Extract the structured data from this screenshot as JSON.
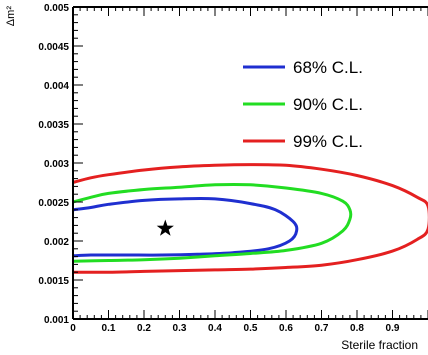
{
  "chart_data": {
    "type": "line",
    "xlabel": "Sterile fraction",
    "ylabel": "Δm²",
    "xlim": [
      0,
      1
    ],
    "ylim": [
      0.001,
      0.005
    ],
    "x_tick_labels": [
      "0",
      "0.1",
      "0.2",
      "0.3",
      "0.4",
      "0.5",
      "0.6",
      "0.7",
      "0.8",
      "0.9"
    ],
    "y_tick_labels": [
      "0.001",
      "0.0015",
      "0.002",
      "0.0025",
      "0.003",
      "0.0035",
      "0.004",
      "0.0045",
      "0.005"
    ],
    "grid": false,
    "legend_position": "top-right",
    "best_fit": {
      "x": 0.26,
      "y": 0.00216,
      "marker": "star",
      "color": "#000000"
    },
    "series": [
      {
        "name": "68% C.L.",
        "color": "#1f2fd0",
        "points": [
          [
            0.0,
            0.0024
          ],
          [
            0.05,
            0.00243
          ],
          [
            0.1,
            0.00247
          ],
          [
            0.2,
            0.00252
          ],
          [
            0.3,
            0.00254
          ],
          [
            0.4,
            0.00254
          ],
          [
            0.5,
            0.00248
          ],
          [
            0.57,
            0.0024
          ],
          [
            0.62,
            0.00225
          ],
          [
            0.63,
            0.00213
          ],
          [
            0.61,
            0.002
          ],
          [
            0.55,
            0.0019
          ],
          [
            0.45,
            0.00185
          ],
          [
            0.35,
            0.00183
          ],
          [
            0.25,
            0.00182
          ],
          [
            0.15,
            0.00182
          ],
          [
            0.05,
            0.00182
          ],
          [
            0.0,
            0.00181
          ]
        ]
      },
      {
        "name": "90% C.L.",
        "color": "#22dd22",
        "points": [
          [
            0.0,
            0.0025
          ],
          [
            0.05,
            0.00256
          ],
          [
            0.1,
            0.00261
          ],
          [
            0.2,
            0.00266
          ],
          [
            0.3,
            0.00269
          ],
          [
            0.4,
            0.00272
          ],
          [
            0.5,
            0.00272
          ],
          [
            0.6,
            0.00268
          ],
          [
            0.7,
            0.00261
          ],
          [
            0.76,
            0.00251
          ],
          [
            0.78,
            0.0024
          ],
          [
            0.78,
            0.00228
          ],
          [
            0.76,
            0.00213
          ],
          [
            0.7,
            0.00197
          ],
          [
            0.6,
            0.00188
          ],
          [
            0.5,
            0.00184
          ],
          [
            0.4,
            0.00181
          ],
          [
            0.3,
            0.00178
          ],
          [
            0.2,
            0.00176
          ],
          [
            0.1,
            0.00175
          ],
          [
            0.0,
            0.00174
          ]
        ]
      },
      {
        "name": "99% C.L.",
        "color": "#e42020",
        "points": [
          [
            0.0,
            0.00275
          ],
          [
            0.05,
            0.00281
          ],
          [
            0.1,
            0.00285
          ],
          [
            0.2,
            0.00291
          ],
          [
            0.3,
            0.00295
          ],
          [
            0.4,
            0.00297
          ],
          [
            0.5,
            0.00298
          ],
          [
            0.6,
            0.00297
          ],
          [
            0.7,
            0.00292
          ],
          [
            0.8,
            0.00284
          ],
          [
            0.9,
            0.00271
          ],
          [
            0.97,
            0.00256
          ],
          [
            1.0,
            0.00245
          ],
          [
            1.0,
            0.00215
          ],
          [
            0.97,
            0.00202
          ],
          [
            0.9,
            0.00187
          ],
          [
            0.8,
            0.00176
          ],
          [
            0.7,
            0.00169
          ],
          [
            0.6,
            0.00166
          ],
          [
            0.5,
            0.00164
          ],
          [
            0.4,
            0.00163
          ],
          [
            0.3,
            0.00162
          ],
          [
            0.2,
            0.00161
          ],
          [
            0.1,
            0.0016
          ],
          [
            0.0,
            0.0016
          ]
        ]
      }
    ]
  }
}
